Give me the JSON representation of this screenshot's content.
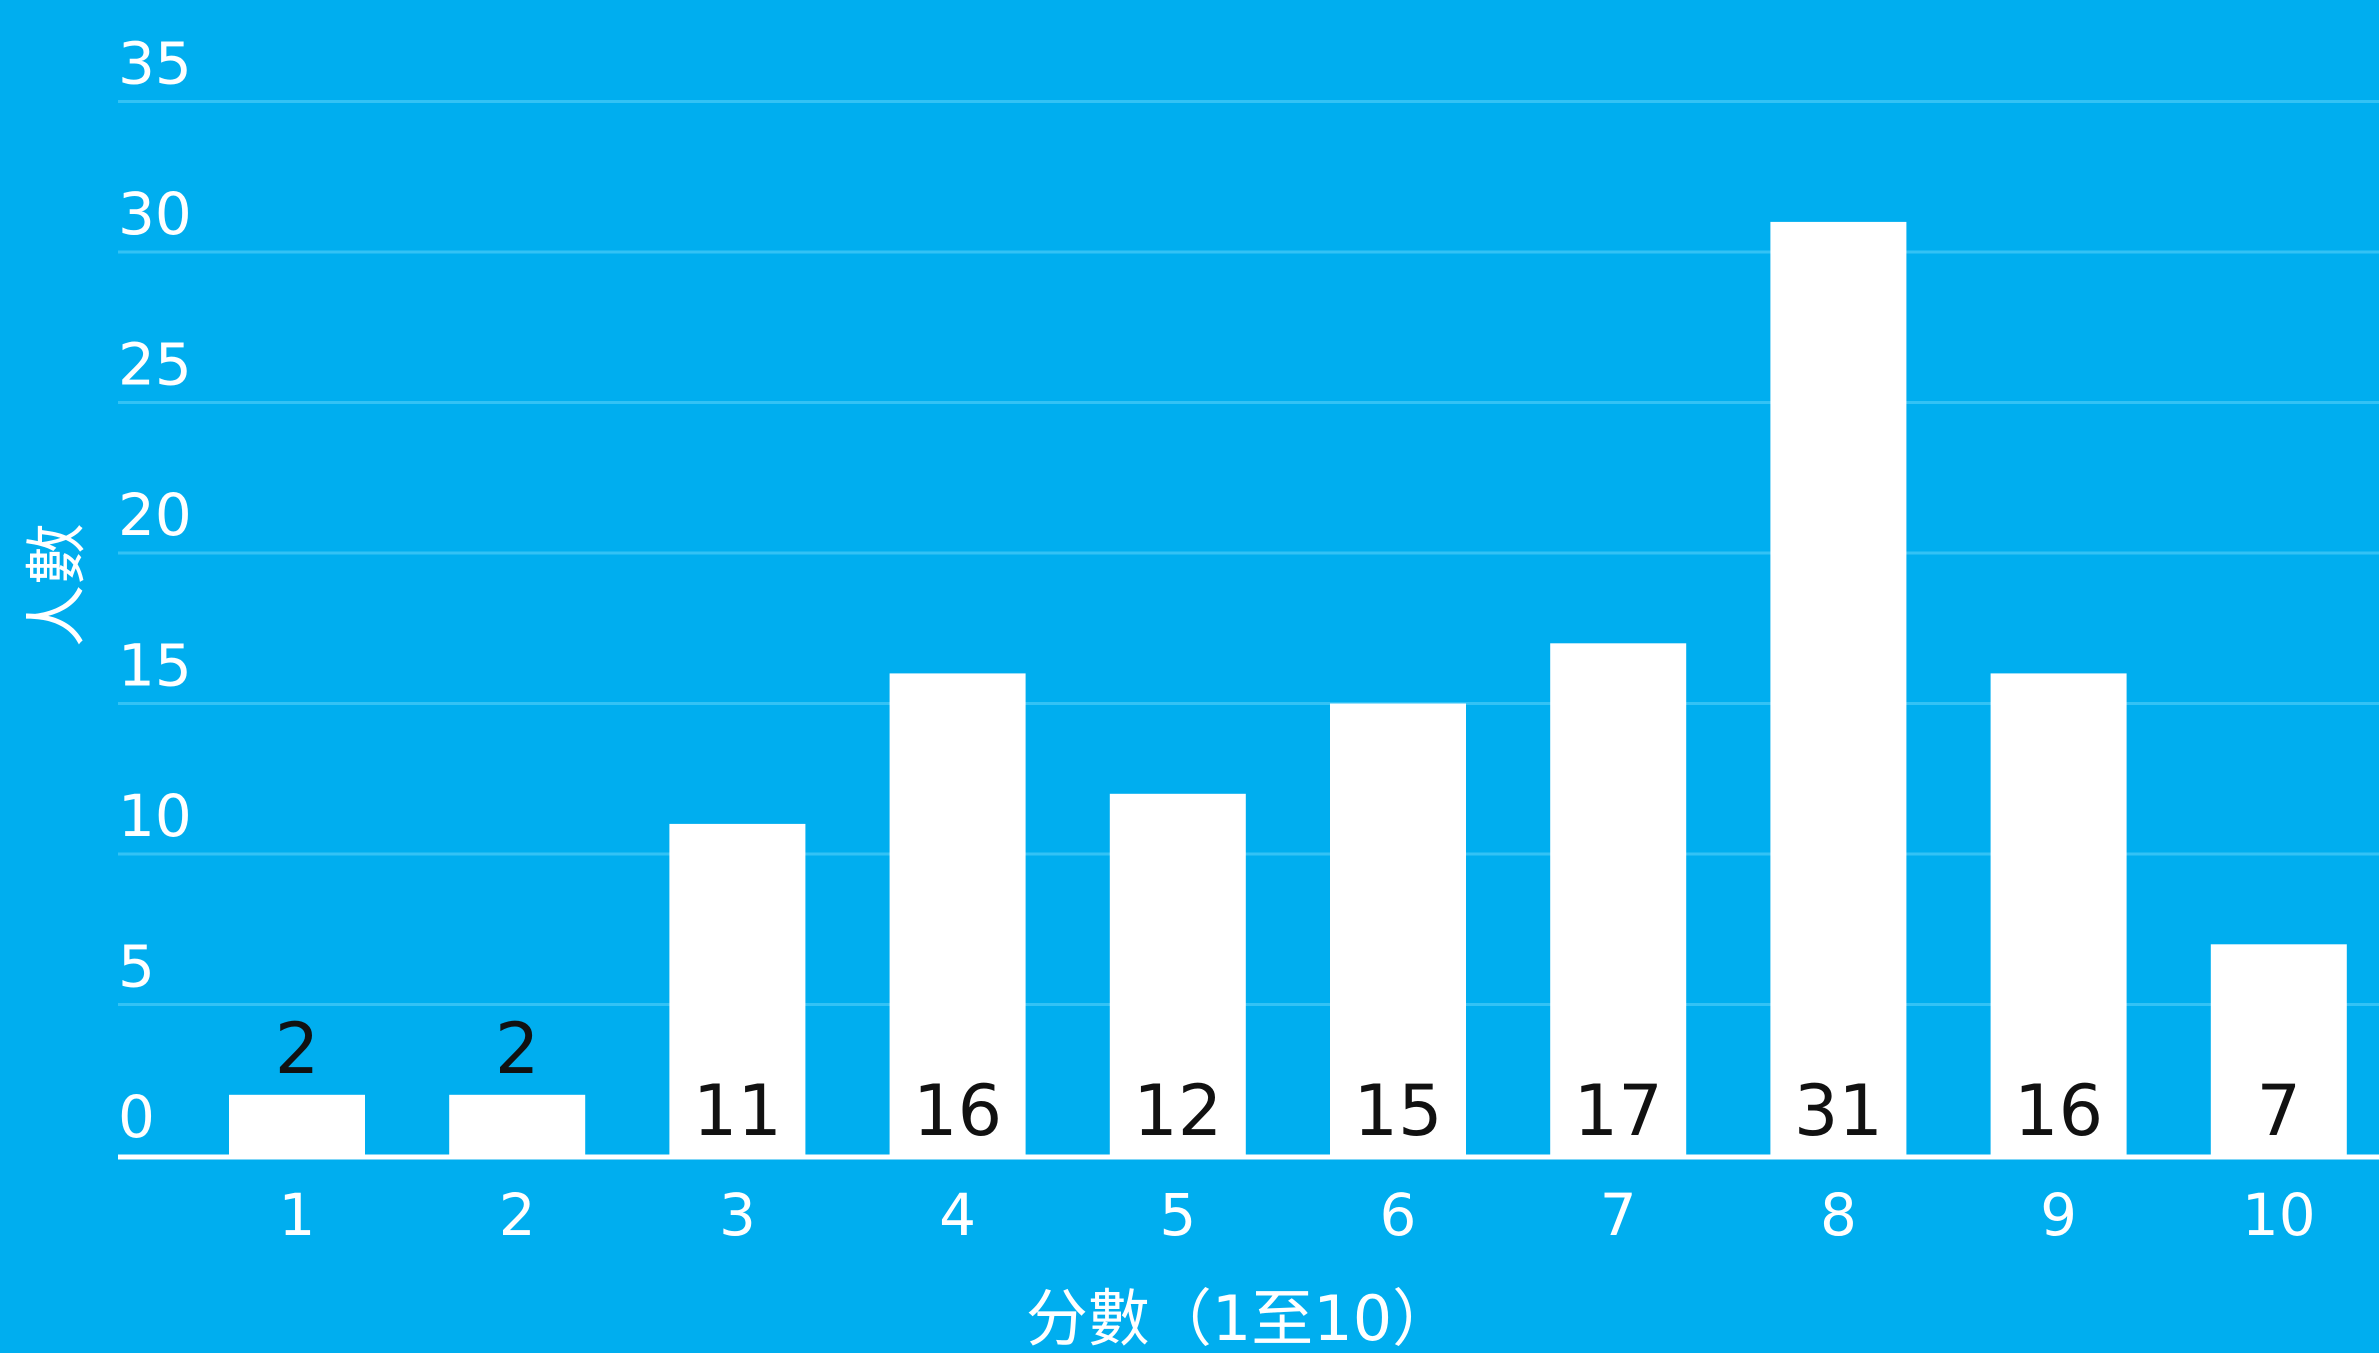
{
  "chart_data": {
    "type": "bar",
    "categories": [
      "1",
      "2",
      "3",
      "4",
      "5",
      "6",
      "7",
      "8",
      "9",
      "10"
    ],
    "values": [
      2,
      2,
      11,
      16,
      12,
      15,
      17,
      31,
      16,
      7
    ],
    "data_labels": [
      "2",
      "2",
      "11",
      "16",
      "12",
      "15",
      "17",
      "31",
      "16",
      "7"
    ],
    "xlabel": "分數（1至10）",
    "ylabel": "人數",
    "ylim": [
      0,
      35
    ],
    "yticks": [
      "0",
      "5",
      "10",
      "15",
      "20",
      "25",
      "30",
      "35"
    ],
    "grid": true,
    "legend": "none",
    "colors": {
      "background": "#00aeef",
      "bar": "#ffffff",
      "gridline": "#33c2f5",
      "axis_line": "#ffffff",
      "tick_text": "#ffffff",
      "data_label": "#111111"
    }
  }
}
